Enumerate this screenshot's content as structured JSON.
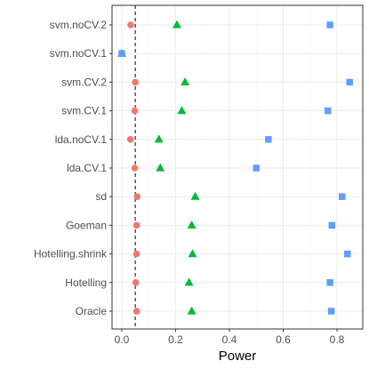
{
  "chart_data": {
    "type": "scatter",
    "xlabel": "Power",
    "ylabel": "",
    "xlim": [
      -0.02,
      0.86
    ],
    "x_ticks": [
      0.0,
      0.2,
      0.4,
      0.6,
      0.8
    ],
    "x_tick_labels": [
      "0.0",
      "0.2",
      "0.4",
      "0.6",
      "0.8"
    ],
    "reference_line_x": 0.05,
    "grid": true,
    "legend": "none",
    "categories": [
      "Oracle",
      "Hotelling",
      "Hotelling.shrink",
      "Goeman",
      "sd",
      "lda.CV.1",
      "lda.noCV.1",
      "svm.CV.1",
      "svm.CV.2",
      "svm.noCV.1",
      "svm.noCV.2"
    ],
    "series": [
      {
        "marker": "circle",
        "color": "#F8766D",
        "values": [
          0.055,
          0.052,
          0.055,
          0.055,
          0.057,
          0.048,
          0.032,
          0.048,
          0.05,
          0.0,
          0.033
        ]
      },
      {
        "marker": "triangle",
        "color": "#00BA38",
        "values": [
          0.26,
          0.25,
          0.263,
          0.26,
          0.273,
          0.143,
          0.138,
          0.223,
          0.235,
          0.0,
          0.205
        ]
      },
      {
        "marker": "square",
        "color": "#619CFF",
        "values": [
          0.779,
          0.774,
          0.839,
          0.781,
          0.819,
          0.5,
          0.545,
          0.766,
          0.847,
          0.0,
          0.774
        ]
      }
    ]
  }
}
